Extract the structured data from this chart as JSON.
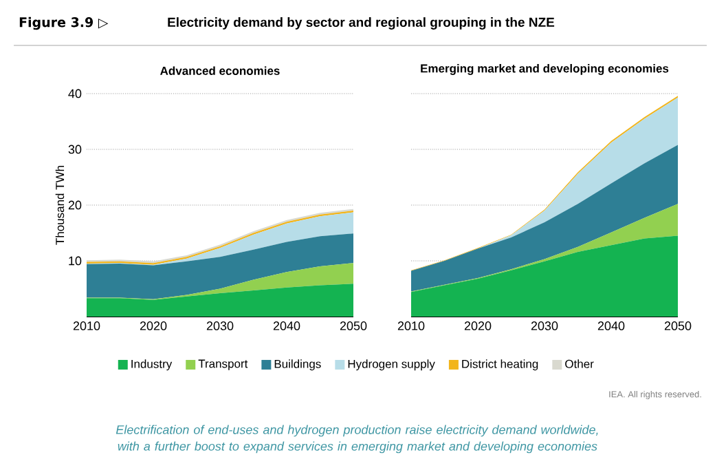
{
  "chart_data": [
    {
      "type": "area",
      "title": "Advanced economies",
      "ylabel": "Thousand TWh",
      "stacked": true,
      "grid": "y",
      "legend": "bottom",
      "x": [
        2010,
        2015,
        2020,
        2025,
        2030,
        2035,
        2040,
        2045,
        2050
      ],
      "xlim": [
        2010,
        2050
      ],
      "xticks": [
        2010,
        2020,
        2030,
        2040,
        2050
      ],
      "ylim": [
        0,
        40
      ],
      "yticks": [
        10,
        20,
        30,
        40
      ],
      "series": [
        {
          "name": "Industry",
          "color": "#14b351",
          "values": [
            3.3,
            3.3,
            3.0,
            3.6,
            4.2,
            4.7,
            5.2,
            5.6,
            5.9
          ]
        },
        {
          "name": "Transport",
          "color": "#92d050",
          "values": [
            0.1,
            0.1,
            0.1,
            0.3,
            0.8,
            1.9,
            2.8,
            3.4,
            3.7
          ]
        },
        {
          "name": "Buildings",
          "color": "#2e7f95",
          "values": [
            6.0,
            6.1,
            6.1,
            6.0,
            5.7,
            5.4,
            5.4,
            5.4,
            5.3
          ]
        },
        {
          "name": "Hydrogen supply",
          "color": "#b7dde8",
          "values": [
            0.1,
            0.1,
            0.1,
            0.5,
            1.6,
            2.7,
            3.3,
            3.6,
            3.8
          ]
        },
        {
          "name": "District heating",
          "color": "#f2b51c",
          "values": [
            0.3,
            0.3,
            0.3,
            0.3,
            0.3,
            0.3,
            0.3,
            0.3,
            0.3
          ]
        },
        {
          "name": "Other",
          "color": "#d9d9cf",
          "values": [
            0.3,
            0.3,
            0.3,
            0.3,
            0.3,
            0.3,
            0.3,
            0.3,
            0.3
          ]
        }
      ],
      "annotations": [
        "Figure 3.9 ▷",
        "Electricity demand by sector and regional grouping in the NZE",
        "IEA. All rights reserved.",
        "Electrification of end-uses and hydrogen production raise electricity demand worldwide, with a further boost to expand services in emerging market and developing economies"
      ]
    },
    {
      "type": "area",
      "title": "Emerging market and developing economies",
      "stacked": true,
      "grid": "y",
      "tick_labels": "x",
      "x": [
        2010,
        2015,
        2020,
        2025,
        2030,
        2035,
        2040,
        2045,
        2050
      ],
      "xlim": [
        2010,
        2050
      ],
      "xticks": [
        2010,
        2020,
        2030,
        2040,
        2050
      ],
      "ylim": [
        0,
        40
      ],
      "yticks": [
        10,
        20,
        30,
        40
      ],
      "series": [
        {
          "color": "#14b351",
          "values": [
            4.4,
            5.6,
            6.8,
            8.3,
            9.9,
            11.6,
            12.8,
            14.0,
            14.5
          ]
        },
        {
          "color": "#92d050",
          "values": [
            0.1,
            0.1,
            0.1,
            0.2,
            0.4,
            0.9,
            2.3,
            3.7,
            5.7
          ]
        },
        {
          "color": "#2e7f95",
          "values": [
            3.7,
            4.3,
            5.3,
            5.7,
            6.6,
            7.7,
            8.8,
            9.8,
            10.6
          ]
        },
        {
          "color": "#b7dde8",
          "values": [
            0.0,
            0.0,
            0.0,
            0.4,
            2.1,
            5.4,
            7.3,
            8.0,
            8.5
          ]
        },
        {
          "color": "#f2b51c",
          "values": [
            0.1,
            0.1,
            0.1,
            0.1,
            0.2,
            0.3,
            0.3,
            0.3,
            0.3
          ]
        }
      ]
    }
  ]
}
